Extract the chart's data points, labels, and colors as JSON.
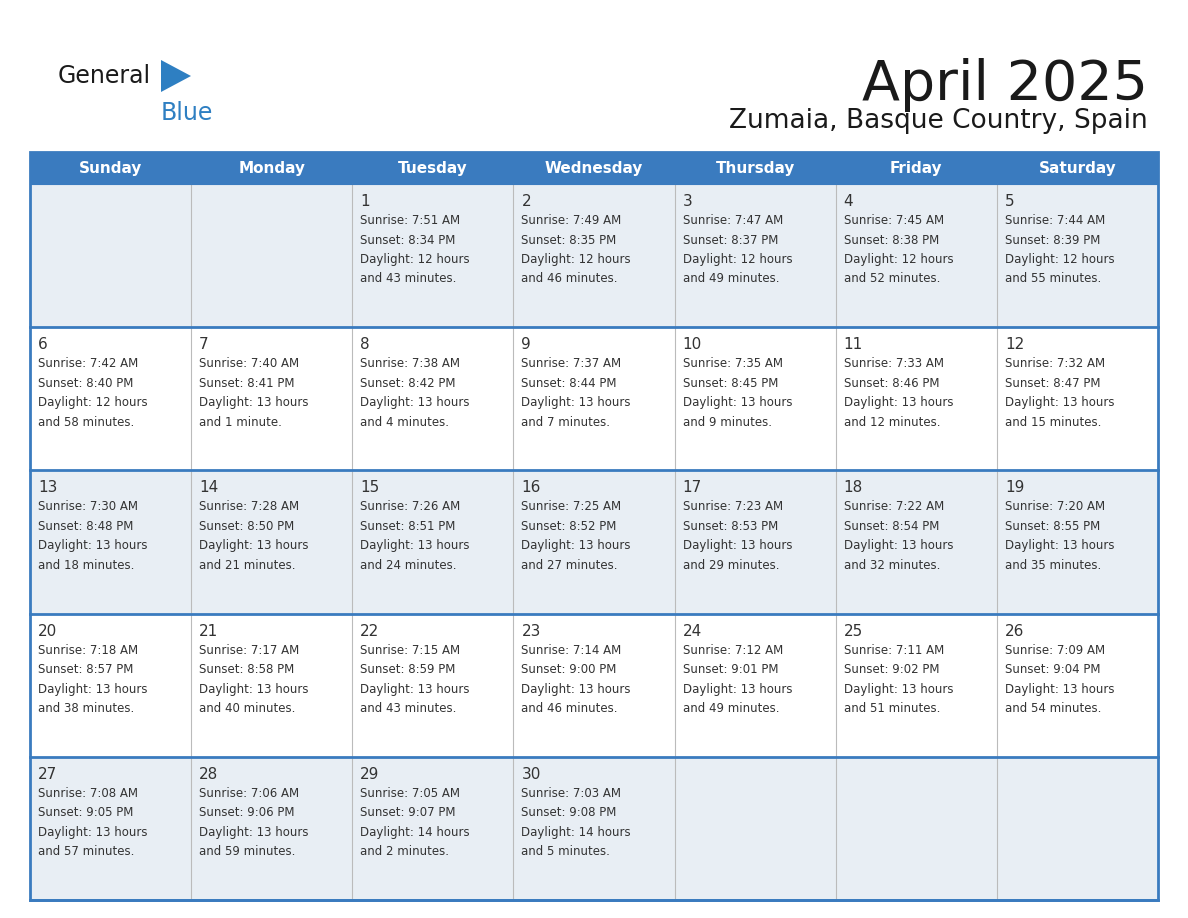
{
  "title": "April 2025",
  "subtitle": "Zumaia, Basque Country, Spain",
  "header_bg": "#3a7bbf",
  "header_text_color": "#ffffff",
  "days_of_week": [
    "Sunday",
    "Monday",
    "Tuesday",
    "Wednesday",
    "Thursday",
    "Friday",
    "Saturday"
  ],
  "row_bg_light": "#e8eef4",
  "row_bg_white": "#ffffff",
  "cell_text_color": "#333333",
  "border_color": "#3a7bbf",
  "title_color": "#1a1a1a",
  "subtitle_color": "#1a1a1a",
  "logo_general_color": "#1a1a1a",
  "logo_blue_color": "#2e7fc2",
  "logo_triangle_color": "#2e7fc2",
  "calendar_data": [
    [
      {
        "day": "",
        "sunrise": "",
        "sunset": "",
        "daylight": ""
      },
      {
        "day": "",
        "sunrise": "",
        "sunset": "",
        "daylight": ""
      },
      {
        "day": "1",
        "sunrise": "7:51 AM",
        "sunset": "8:34 PM",
        "daylight": "12 hours and 43 minutes."
      },
      {
        "day": "2",
        "sunrise": "7:49 AM",
        "sunset": "8:35 PM",
        "daylight": "12 hours and 46 minutes."
      },
      {
        "day": "3",
        "sunrise": "7:47 AM",
        "sunset": "8:37 PM",
        "daylight": "12 hours and 49 minutes."
      },
      {
        "day": "4",
        "sunrise": "7:45 AM",
        "sunset": "8:38 PM",
        "daylight": "12 hours and 52 minutes."
      },
      {
        "day": "5",
        "sunrise": "7:44 AM",
        "sunset": "8:39 PM",
        "daylight": "12 hours and 55 minutes."
      }
    ],
    [
      {
        "day": "6",
        "sunrise": "7:42 AM",
        "sunset": "8:40 PM",
        "daylight": "12 hours and 58 minutes."
      },
      {
        "day": "7",
        "sunrise": "7:40 AM",
        "sunset": "8:41 PM",
        "daylight": "13 hours and 1 minute."
      },
      {
        "day": "8",
        "sunrise": "7:38 AM",
        "sunset": "8:42 PM",
        "daylight": "13 hours and 4 minutes."
      },
      {
        "day": "9",
        "sunrise": "7:37 AM",
        "sunset": "8:44 PM",
        "daylight": "13 hours and 7 minutes."
      },
      {
        "day": "10",
        "sunrise": "7:35 AM",
        "sunset": "8:45 PM",
        "daylight": "13 hours and 9 minutes."
      },
      {
        "day": "11",
        "sunrise": "7:33 AM",
        "sunset": "8:46 PM",
        "daylight": "13 hours and 12 minutes."
      },
      {
        "day": "12",
        "sunrise": "7:32 AM",
        "sunset": "8:47 PM",
        "daylight": "13 hours and 15 minutes."
      }
    ],
    [
      {
        "day": "13",
        "sunrise": "7:30 AM",
        "sunset": "8:48 PM",
        "daylight": "13 hours and 18 minutes."
      },
      {
        "day": "14",
        "sunrise": "7:28 AM",
        "sunset": "8:50 PM",
        "daylight": "13 hours and 21 minutes."
      },
      {
        "day": "15",
        "sunrise": "7:26 AM",
        "sunset": "8:51 PM",
        "daylight": "13 hours and 24 minutes."
      },
      {
        "day": "16",
        "sunrise": "7:25 AM",
        "sunset": "8:52 PM",
        "daylight": "13 hours and 27 minutes."
      },
      {
        "day": "17",
        "sunrise": "7:23 AM",
        "sunset": "8:53 PM",
        "daylight": "13 hours and 29 minutes."
      },
      {
        "day": "18",
        "sunrise": "7:22 AM",
        "sunset": "8:54 PM",
        "daylight": "13 hours and 32 minutes."
      },
      {
        "day": "19",
        "sunrise": "7:20 AM",
        "sunset": "8:55 PM",
        "daylight": "13 hours and 35 minutes."
      }
    ],
    [
      {
        "day": "20",
        "sunrise": "7:18 AM",
        "sunset": "8:57 PM",
        "daylight": "13 hours and 38 minutes."
      },
      {
        "day": "21",
        "sunrise": "7:17 AM",
        "sunset": "8:58 PM",
        "daylight": "13 hours and 40 minutes."
      },
      {
        "day": "22",
        "sunrise": "7:15 AM",
        "sunset": "8:59 PM",
        "daylight": "13 hours and 43 minutes."
      },
      {
        "day": "23",
        "sunrise": "7:14 AM",
        "sunset": "9:00 PM",
        "daylight": "13 hours and 46 minutes."
      },
      {
        "day": "24",
        "sunrise": "7:12 AM",
        "sunset": "9:01 PM",
        "daylight": "13 hours and 49 minutes."
      },
      {
        "day": "25",
        "sunrise": "7:11 AM",
        "sunset": "9:02 PM",
        "daylight": "13 hours and 51 minutes."
      },
      {
        "day": "26",
        "sunrise": "7:09 AM",
        "sunset": "9:04 PM",
        "daylight": "13 hours and 54 minutes."
      }
    ],
    [
      {
        "day": "27",
        "sunrise": "7:08 AM",
        "sunset": "9:05 PM",
        "daylight": "13 hours and 57 minutes."
      },
      {
        "day": "28",
        "sunrise": "7:06 AM",
        "sunset": "9:06 PM",
        "daylight": "13 hours and 59 minutes."
      },
      {
        "day": "29",
        "sunrise": "7:05 AM",
        "sunset": "9:07 PM",
        "daylight": "14 hours and 2 minutes."
      },
      {
        "day": "30",
        "sunrise": "7:03 AM",
        "sunset": "9:08 PM",
        "daylight": "14 hours and 5 minutes."
      },
      {
        "day": "",
        "sunrise": "",
        "sunset": "",
        "daylight": ""
      },
      {
        "day": "",
        "sunrise": "",
        "sunset": "",
        "daylight": ""
      },
      {
        "day": "",
        "sunrise": "",
        "sunset": "",
        "daylight": ""
      }
    ]
  ]
}
